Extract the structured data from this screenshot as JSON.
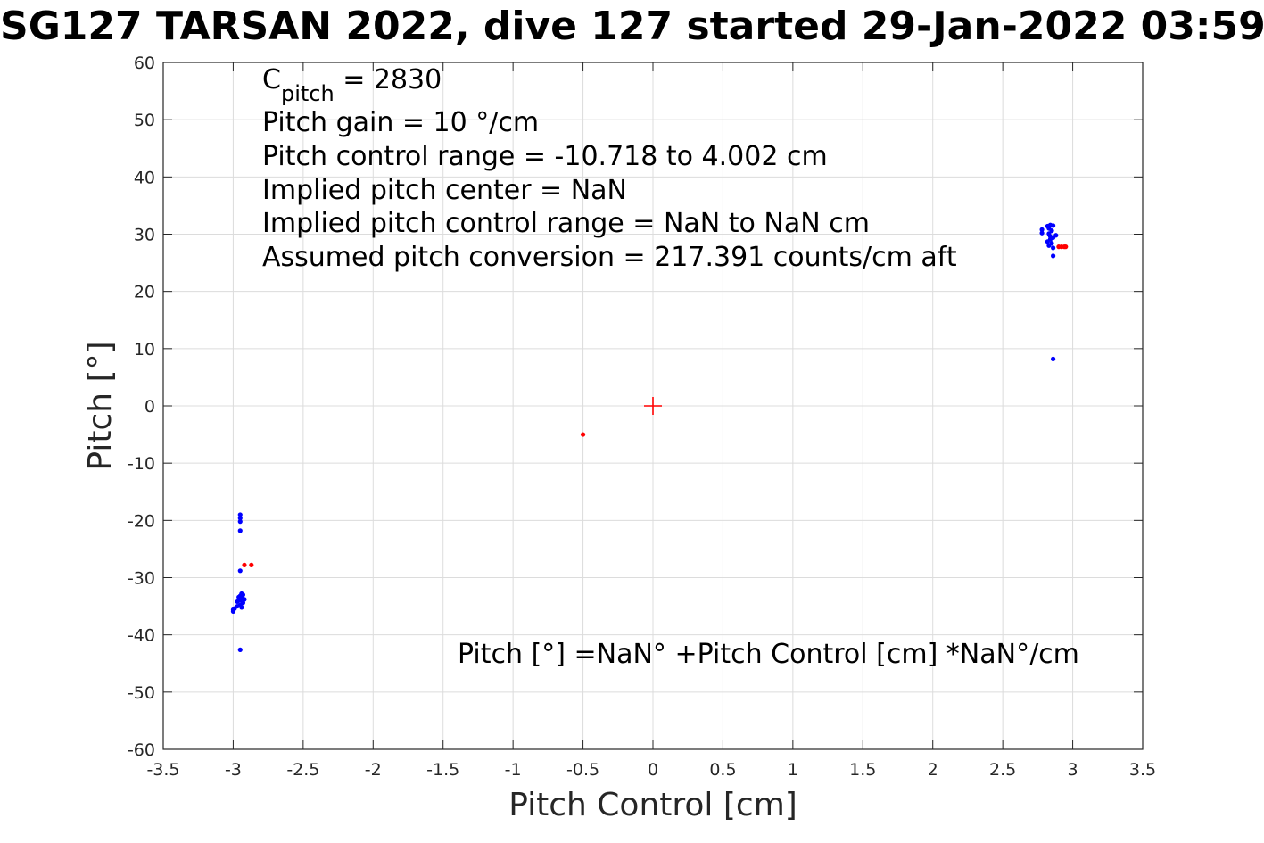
{
  "chart_data": {
    "type": "scatter",
    "title": "SG127 TARSAN 2022, dive 127 started 29-Jan-2022 03:59",
    "xlabel": "Pitch Control [cm]",
    "ylabel": "Pitch [°]",
    "xlim": [
      -3.5,
      3.5
    ],
    "ylim": [
      -60,
      60
    ],
    "x_ticks": [
      -3.5,
      -3,
      -2.5,
      -2,
      -1.5,
      -1,
      -0.5,
      0,
      0.5,
      1,
      1.5,
      2,
      2.5,
      3,
      3.5
    ],
    "x_tick_labels": [
      "-3.5",
      "-3",
      "-2.5",
      "-2",
      "-1.5",
      "-1",
      "-0.5",
      "0",
      "0.5",
      "1",
      "1.5",
      "2",
      "2.5",
      "3",
      "3.5"
    ],
    "y_ticks": [
      -60,
      -50,
      -40,
      -30,
      -20,
      -10,
      0,
      10,
      20,
      30,
      40,
      50,
      60
    ],
    "y_tick_labels": [
      "-60",
      "-50",
      "-40",
      "-30",
      "-20",
      "-10",
      "0",
      "10",
      "20",
      "30",
      "40",
      "50",
      "60"
    ],
    "grid": true,
    "annotations": {
      "c_pitch_main": "C",
      "c_pitch_sub": "pitch",
      "c_pitch_value": " = 2830",
      "pitch_gain": "Pitch gain = 10 °/cm",
      "control_range": "Pitch control range = -10.718 to 4.002 cm",
      "implied_center": "Implied pitch center = NaN",
      "implied_range": "Implied pitch control range = NaN to NaN cm",
      "conversion": "Assumed pitch conversion = 217.391 counts/cm aft",
      "fit_equation": "Pitch [°] =NaN° +Pitch Control [cm] *NaN°/cm"
    },
    "series": [
      {
        "color": "#0000ff",
        "marker": "dot",
        "points": [
          [
            -2.95,
            -19.0
          ],
          [
            -2.95,
            -19.6
          ],
          [
            -2.95,
            -20.2
          ],
          [
            -2.95,
            -21.8
          ],
          [
            -2.95,
            -28.8
          ],
          [
            -2.94,
            -32.8
          ],
          [
            -2.93,
            -33.0
          ],
          [
            -2.95,
            -33.2
          ],
          [
            -2.96,
            -33.4
          ],
          [
            -2.94,
            -33.6
          ],
          [
            -2.92,
            -33.8
          ],
          [
            -2.95,
            -34.0
          ],
          [
            -2.97,
            -34.2
          ],
          [
            -2.93,
            -34.4
          ],
          [
            -2.95,
            -34.8
          ],
          [
            -2.94,
            -35.2
          ],
          [
            -2.97,
            -35.0
          ],
          [
            -2.99,
            -35.4
          ],
          [
            -3.0,
            -35.6
          ],
          [
            -3.0,
            -35.9
          ],
          [
            -2.95,
            -42.6
          ],
          [
            2.78,
            30.2
          ],
          [
            2.78,
            30.8
          ],
          [
            2.82,
            31.4
          ],
          [
            2.84,
            31.6
          ],
          [
            2.86,
            31.5
          ],
          [
            2.83,
            31.0
          ],
          [
            2.85,
            30.6
          ],
          [
            2.83,
            30.1
          ],
          [
            2.84,
            29.6
          ],
          [
            2.86,
            29.4
          ],
          [
            2.88,
            29.8
          ],
          [
            2.84,
            29.1
          ],
          [
            2.82,
            28.7
          ],
          [
            2.85,
            28.4
          ],
          [
            2.83,
            28.0
          ],
          [
            2.86,
            27.6
          ],
          [
            2.86,
            26.2
          ],
          [
            2.86,
            8.2
          ]
        ]
      },
      {
        "color": "#ff0000",
        "marker": "dot",
        "points": [
          [
            -2.92,
            -27.8
          ],
          [
            -2.87,
            -27.8
          ],
          [
            -0.5,
            -5.0
          ],
          [
            2.9,
            27.8
          ],
          [
            2.92,
            27.8
          ],
          [
            2.94,
            27.8
          ],
          [
            2.95,
            27.8
          ]
        ]
      },
      {
        "color": "#ff0000",
        "marker": "plus",
        "points": [
          [
            0,
            0
          ]
        ]
      }
    ]
  }
}
